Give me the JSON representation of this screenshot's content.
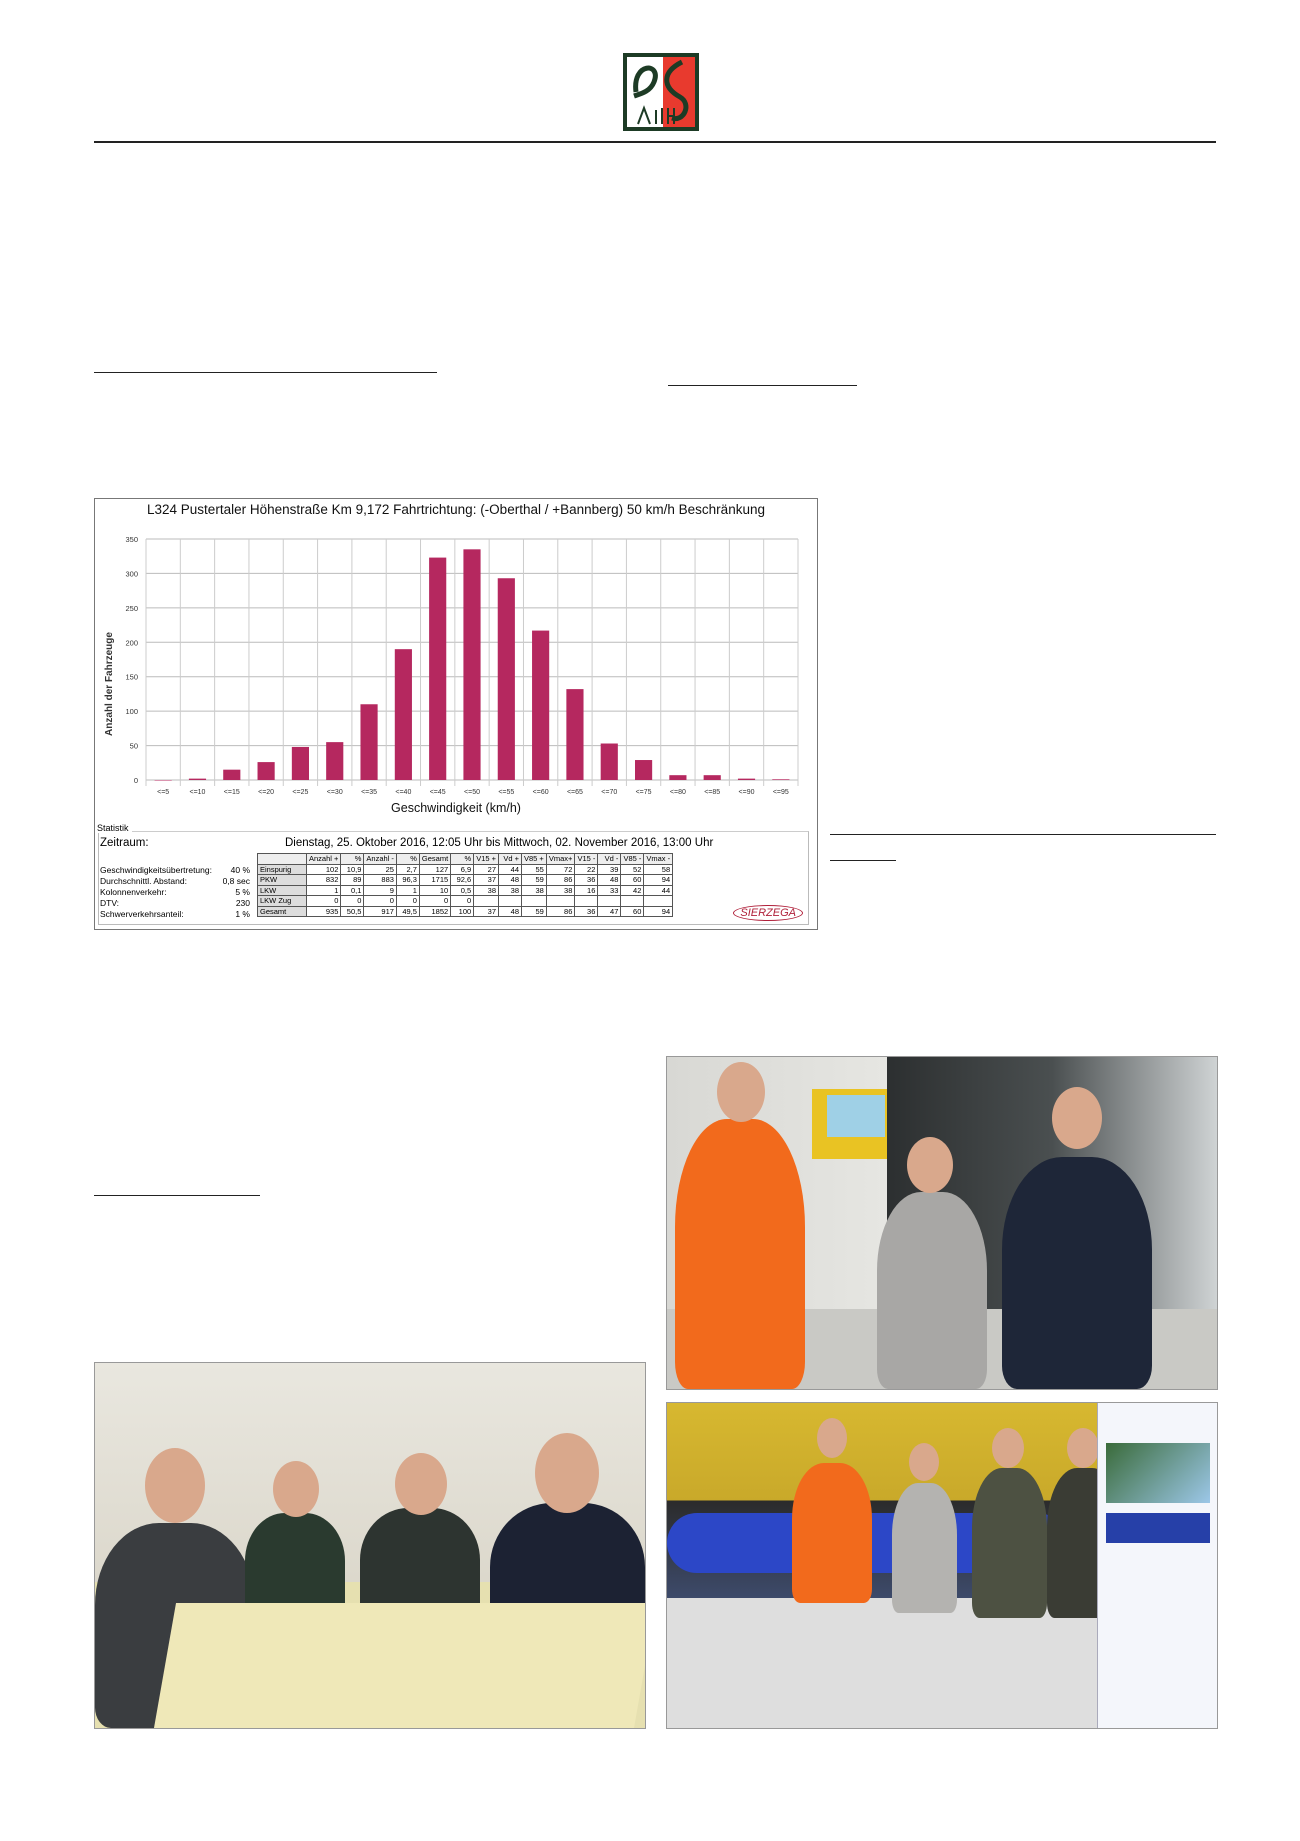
{
  "logo": {
    "text": "PS ACHIE",
    "colors": {
      "green": "#1d3b25",
      "red": "#e83a2e"
    }
  },
  "chart_data": {
    "type": "bar",
    "title": "L324 Pustertaler Höhenstraße Km 9,172 Fahrtrichtung: (-Oberthal / +Bannberg) 50 km/h Beschränkung",
    "xlabel": "Geschwindigkeit (km/h)",
    "ylabel": "Anzahl der Fahrzeuge",
    "categories": [
      "<=5",
      "<=10",
      "<=15",
      "<=20",
      "<=25",
      "<=30",
      "<=35",
      "<=40",
      "<=45",
      "<=50",
      "<=55",
      "<=60",
      "<=65",
      "<=70",
      "<=75",
      "<=80",
      "<=85",
      "<=90",
      "<=95"
    ],
    "values": [
      0,
      2,
      15,
      26,
      48,
      55,
      110,
      190,
      323,
      335,
      293,
      217,
      132,
      53,
      29,
      7,
      7,
      2,
      1
    ],
    "ylim": [
      0,
      350
    ],
    "yticks": [
      0,
      50,
      100,
      150,
      200,
      250,
      300,
      350
    ],
    "grid": true,
    "bar_color": "#b5285f"
  },
  "stats": {
    "legend": "Statistik",
    "zeitraum_label": "Zeitraum:",
    "zeitraum_value": "Dienstag, 25. Oktober 2016, 12:05 Uhr bis Mittwoch, 02. November 2016, 13:00 Uhr",
    "kv": [
      {
        "label": "Geschwindigkeitsübertretung:",
        "value": "40 %"
      },
      {
        "label": "Durchschnittl. Abstand:",
        "value": "0,8 sec"
      },
      {
        "label": "Kolonnenverkehr:",
        "value": "5 %"
      },
      {
        "label": "DTV:",
        "value": "230"
      },
      {
        "label": "Schwerverkehrsanteil:",
        "value": "1 %"
      }
    ],
    "headers": [
      "",
      "Anzahl +",
      "%",
      "Anzahl -",
      "%",
      "Gesamt",
      "%",
      "V15 +",
      "Vd +",
      "V85 +",
      "Vmax+",
      "V15 -",
      "Vd -",
      "V85 -",
      "Vmax -"
    ],
    "rows": [
      [
        "Einspurig",
        "102",
        "10,9",
        "25",
        "2,7",
        "127",
        "6,9",
        "27",
        "44",
        "55",
        "72",
        "22",
        "39",
        "52",
        "58"
      ],
      [
        "PKW",
        "832",
        "89",
        "883",
        "96,3",
        "1715",
        "92,6",
        "37",
        "48",
        "59",
        "86",
        "36",
        "48",
        "60",
        "94"
      ],
      [
        "LKW",
        "1",
        "0,1",
        "9",
        "1",
        "10",
        "0,5",
        "38",
        "38",
        "38",
        "38",
        "16",
        "33",
        "42",
        "44"
      ],
      [
        "LKW Zug",
        "0",
        "0",
        "0",
        "0",
        "0",
        "0",
        "",
        "",
        "",
        "",
        "",
        "",
        "",
        ""
      ],
      [
        "Gesamt",
        "935",
        "50,5",
        "917",
        "49,5",
        "1852",
        "100",
        "37",
        "48",
        "59",
        "86",
        "36",
        "47",
        "60",
        "94"
      ]
    ],
    "brand": "SIERZEGA"
  }
}
